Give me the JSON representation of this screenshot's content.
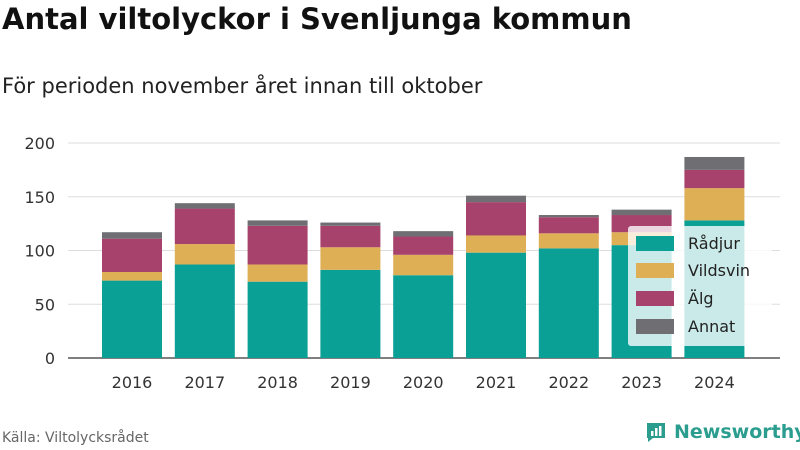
{
  "header": {
    "title": "Antal viltolyckor i Svenljunga kommun",
    "subtitle": "För perioden november året innan till oktober"
  },
  "footer": {
    "source": "Källa: Viltolycksrådet",
    "brand": "Newsworthy",
    "brand_icon": "newsworthy-logo-icon"
  },
  "chart_data": {
    "type": "bar",
    "stacked": true,
    "categories": [
      "2016",
      "2017",
      "2018",
      "2019",
      "2020",
      "2021",
      "2022",
      "2023",
      "2024"
    ],
    "series": [
      {
        "name": "Rådjur",
        "color": "#0aa096",
        "values": [
          72,
          87,
          71,
          82,
          77,
          98,
          102,
          105,
          128
        ]
      },
      {
        "name": "Vildsvin",
        "color": "#dfaf56",
        "values": [
          8,
          19,
          16,
          21,
          19,
          16,
          14,
          12,
          30
        ]
      },
      {
        "name": "Älg",
        "color": "#a6426b",
        "values": [
          31,
          33,
          36,
          20,
          17,
          31,
          15,
          16,
          17
        ]
      },
      {
        "name": "Annat",
        "color": "#6e6e73",
        "values": [
          6,
          5,
          5,
          3,
          5,
          6,
          2,
          5,
          12
        ]
      }
    ],
    "ylim": [
      0,
      200
    ],
    "yticks": [
      0,
      50,
      100,
      150,
      200
    ],
    "grid": true,
    "legend_position": "bottom-right"
  }
}
